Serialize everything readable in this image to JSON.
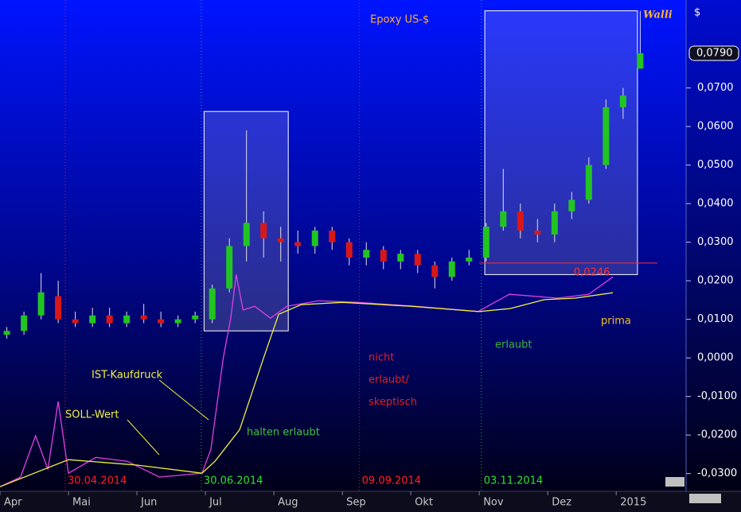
{
  "chart_data": {
    "type": "candlestick",
    "title": "Epoxy US-$",
    "currency": "$",
    "logo": "Walli",
    "up_color": "#22c422",
    "down_color": "#d81818",
    "x": [
      0.1,
      0.35,
      0.6,
      0.85,
      1.1,
      1.35,
      1.6,
      1.85,
      2.1,
      2.35,
      2.6,
      2.85,
      3.1,
      3.35,
      3.6,
      3.85,
      4.1,
      4.35,
      4.6,
      4.85,
      5.1,
      5.35,
      5.6,
      5.85,
      6.1,
      6.35,
      6.6,
      6.85,
      7.1,
      7.35,
      7.6,
      7.85,
      8.1,
      8.35,
      8.6,
      8.85,
      9.1,
      9.35
    ],
    "open": [
      0.006,
      0.007,
      0.011,
      0.016,
      0.01,
      0.009,
      0.011,
      0.009,
      0.011,
      0.01,
      0.009,
      0.01,
      0.01,
      0.018,
      0.029,
      0.035,
      0.031,
      0.03,
      0.029,
      0.033,
      0.03,
      0.026,
      0.028,
      0.025,
      0.027,
      0.024,
      0.021,
      0.025,
      0.026,
      0.034,
      0.038,
      0.033,
      0.032,
      0.038,
      0.041,
      0.05,
      0.065,
      0.075
    ],
    "high": [
      0.008,
      0.012,
      0.022,
      0.02,
      0.012,
      0.013,
      0.013,
      0.012,
      0.014,
      0.012,
      0.011,
      0.012,
      0.019,
      0.031,
      0.059,
      0.038,
      0.034,
      0.033,
      0.034,
      0.034,
      0.031,
      0.03,
      0.029,
      0.028,
      0.028,
      0.025,
      0.026,
      0.028,
      0.035,
      0.049,
      0.04,
      0.036,
      0.04,
      0.043,
      0.052,
      0.067,
      0.07,
      0.09
    ],
    "low": [
      0.005,
      0.006,
      0.01,
      0.009,
      0.008,
      0.008,
      0.008,
      0.008,
      0.009,
      0.008,
      0.008,
      0.009,
      0.009,
      0.017,
      0.025,
      0.026,
      0.025,
      0.027,
      0.027,
      0.028,
      0.024,
      0.024,
      0.023,
      0.023,
      0.022,
      0.018,
      0.02,
      0.024,
      0.025,
      0.033,
      0.031,
      0.03,
      0.03,
      0.036,
      0.04,
      0.049,
      0.062,
      0.075
    ],
    "close": [
      0.007,
      0.011,
      0.017,
      0.01,
      0.009,
      0.011,
      0.009,
      0.011,
      0.01,
      0.009,
      0.01,
      0.011,
      0.018,
      0.029,
      0.035,
      0.031,
      0.03,
      0.029,
      0.033,
      0.03,
      0.026,
      0.028,
      0.025,
      0.027,
      0.024,
      0.021,
      0.025,
      0.026,
      0.034,
      0.038,
      0.033,
      0.032,
      0.038,
      0.041,
      0.05,
      0.065,
      0.068,
      0.079
    ],
    "lines": [
      {
        "name": "IST-Kaufdruck",
        "color": "#e040e0",
        "x": [
          0,
          0.3,
          0.52,
          0.7,
          0.85,
          1.0,
          1.4,
          1.86,
          2.33,
          2.95,
          3.08,
          3.26,
          3.37,
          3.45,
          3.55,
          3.72,
          3.95,
          4.19,
          4.65,
          5.23,
          6.05,
          6.98,
          7.44,
          8.14,
          8.6,
          8.95
        ],
        "values": [
          -0.0334,
          -0.0309,
          -0.0202,
          -0.0289,
          -0.0113,
          -0.0299,
          -0.0258,
          -0.0268,
          -0.0309,
          -0.0299,
          -0.0237,
          0,
          0.0103,
          0.0216,
          0.0124,
          0.0134,
          0.0103,
          0.0134,
          0.0148,
          0.0144,
          0.0134,
          0.012,
          0.0165,
          0.0155,
          0.0165,
          0.021
        ]
      },
      {
        "name": "SOLL-Wert",
        "color": "#f0f040",
        "x": [
          0,
          1.0,
          2.0,
          2.95,
          3.14,
          3.5,
          3.85,
          4.07,
          4.4,
          5.0,
          6.0,
          7.0,
          7.45,
          7.95,
          8.4,
          8.95
        ],
        "values": [
          -0.0334,
          -0.0264,
          -0.0278,
          -0.0299,
          -0.0268,
          -0.0186,
          0,
          0.0113,
          0.0138,
          0.0144,
          0.0134,
          0.012,
          0.0128,
          0.0151,
          0.0155,
          0.0169
        ]
      }
    ],
    "xlim": [
      0,
      10.02
    ],
    "xticks": [
      {
        "value": 0,
        "label": "Apr"
      },
      {
        "value": 1,
        "label": "Mai"
      },
      {
        "value": 2,
        "label": "Jun"
      },
      {
        "value": 3,
        "label": "Jul"
      },
      {
        "value": 4,
        "label": "Aug"
      },
      {
        "value": 5,
        "label": "Sep"
      },
      {
        "value": 6,
        "label": "Okt"
      },
      {
        "value": 7,
        "label": "Nov"
      },
      {
        "value": 8,
        "label": "Dez"
      },
      {
        "value": 9,
        "label": "2015"
      }
    ],
    "ylim": [
      -0.0346,
      0.0928
    ],
    "yticks": [
      {
        "value": 0.07,
        "label": "0,0700"
      },
      {
        "value": 0.06,
        "label": "0,0600"
      },
      {
        "value": 0.05,
        "label": "0,0500"
      },
      {
        "value": 0.04,
        "label": "0,0400"
      },
      {
        "value": 0.03,
        "label": "0,0300"
      },
      {
        "value": 0.02,
        "label": "0,0200"
      },
      {
        "value": 0.01,
        "label": "0,0100"
      },
      {
        "value": 0,
        "label": "0,0000"
      },
      {
        "value": -0.01,
        "label": "-0,0100"
      },
      {
        "value": -0.02,
        "label": "-0,0200"
      },
      {
        "value": -0.03,
        "label": "-0,0300"
      }
    ],
    "last_price": {
      "value": 0.079,
      "label": "0,0790"
    },
    "level": {
      "value": 0.0246,
      "label": "0,0246",
      "color": "#ff3030",
      "x": [
        7.0,
        9.6
      ]
    },
    "highlights": [
      {
        "x": [
          2.98,
          4.21
        ],
        "y": [
          0.007,
          0.0639
        ]
      },
      {
        "x": [
          7.08,
          9.31
        ],
        "y": [
          0.0216,
          0.09
        ]
      }
    ],
    "events": [
      {
        "x": 0.953,
        "label": "30.04.2014",
        "color": "#ff2020"
      },
      {
        "x": 2.94,
        "label": "30.06.2014",
        "color": "#30e030"
      },
      {
        "x": 5.25,
        "label": "09.09.2014",
        "color": "#ff2020"
      },
      {
        "x": 7.03,
        "label": "03.11.2014",
        "color": "#30e030"
      }
    ],
    "annotations": [
      {
        "text": [
          "halten erlaubt"
        ],
        "color": "#40c040"
      },
      {
        "text": [
          "nicht",
          "erlaubt/",
          "skeptisch"
        ],
        "color": "#e02020"
      },
      {
        "text": [
          "erlaubt"
        ],
        "color": "#40b040"
      },
      {
        "text": [
          "prima"
        ],
        "color": "#f0c020"
      }
    ]
  }
}
